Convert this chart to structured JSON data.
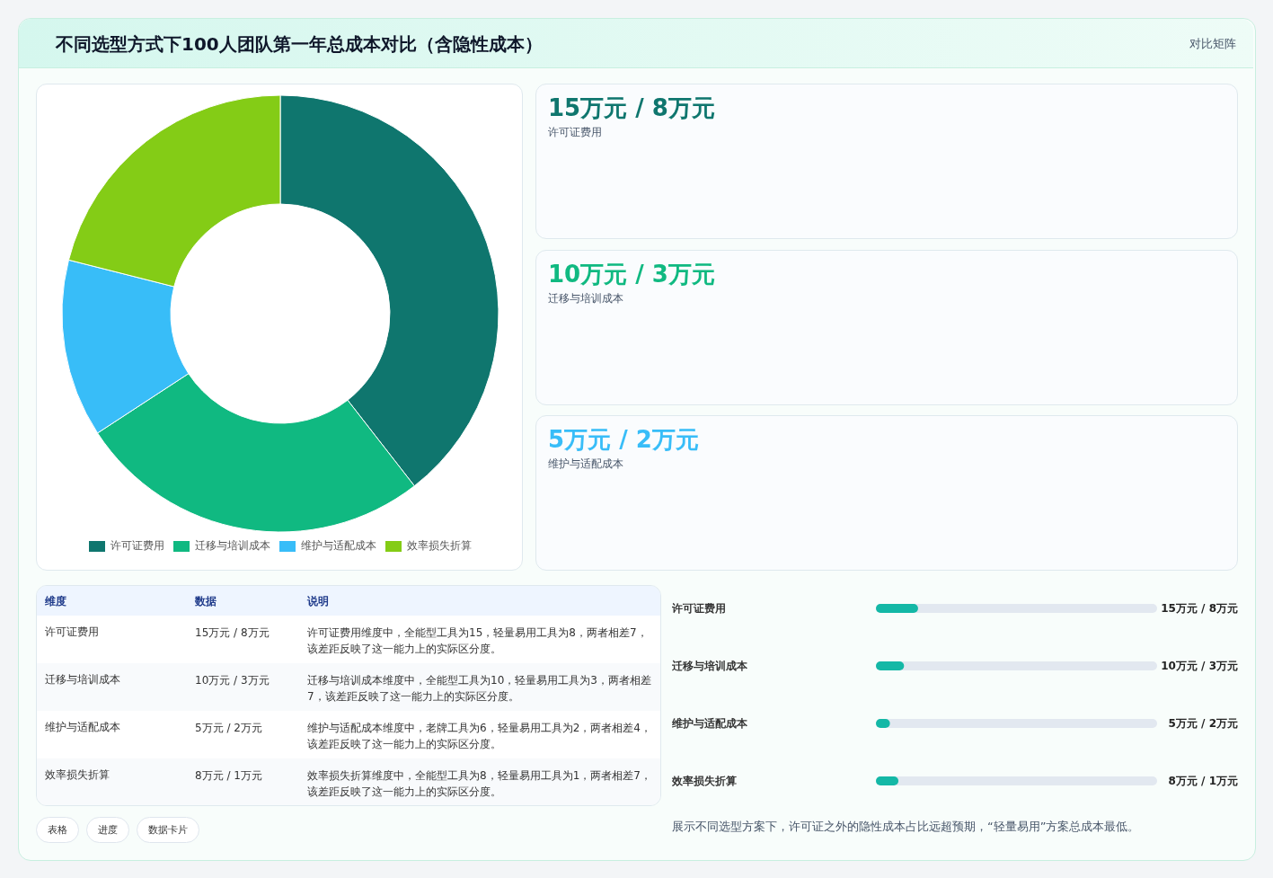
{
  "chart_data": [
    {
      "type": "donut",
      "title": "不同选型方式下100人团队第一年总成本对比（含隐性成本）",
      "annotations": [
        "对比矩阵"
      ],
      "categories": [
        "许可证费用",
        "迁移与培训成本",
        "维护与适配成本",
        "效率损失折算"
      ],
      "values": [
        39.47,
        26.32,
        13.16,
        21.05
      ],
      "colors": [
        "#0f766e",
        "#10b981",
        "#38bdf8",
        "#84cc16"
      ],
      "legend": "bottom"
    },
    {
      "type": "other",
      "categories": [
        "许可证费用",
        "迁移与培训成本",
        "维护与适配成本"
      ],
      "value_labels": [
        "15万元 / 8万元",
        "10万元 / 3万元",
        "5万元 / 2万元"
      ]
    },
    {
      "type": "other",
      "categories": [
        "维度",
        "数据",
        "说明"
      ],
      "y_categories": [
        "许可证费用",
        "迁移与培训成本",
        "维护与适配成本",
        "效率损失折算"
      ],
      "cell_labels": [
        [
          "15万元 / 8万元",
          "许可证费用维度中，全能型工具为15，轻量易用工具为8，两者相差7，该差距反映了这一能力上的实际区分度。"
        ],
        [
          "10万元 / 3万元",
          "迁移与培训成本维度中，全能型工具为10，轻量易用工具为3，两者相差7，该差距反映了这一能力上的实际区分度。"
        ],
        [
          "5万元 / 2万元",
          "维护与适配成本维度中，老牌工具为6，轻量易用工具为2，两者相差4，该差距反映了这一能力上的实际区分度。"
        ],
        [
          "8万元 / 1万元",
          "效率损失折算维度中，全能型工具为8，轻量易用工具为1，两者相差7，该差距反映了这一能力上的实际区分度。"
        ]
      ]
    },
    {
      "type": "bar",
      "orientation": "horizontal",
      "categories": [
        "许可证费用",
        "迁移与培训成本",
        "维护与适配成本",
        "效率损失折算"
      ],
      "values": [
        15,
        10,
        5,
        8
      ],
      "xlim": [
        0,
        100
      ],
      "color": "#14b8a6",
      "value_labels": [
        "15万元 / 8万元",
        "10万元 / 3万元",
        "5万元 / 2万元",
        "8万元 / 1万元"
      ],
      "annotations": [
        "展示不同选型方案下，许可证之外的隐性成本占比远超预期，“轻量易用”方案总成本最低。"
      ]
    },
    {
      "type": "other",
      "categories": [
        "表格",
        "进度",
        "数据卡片"
      ]
    }
  ]
}
